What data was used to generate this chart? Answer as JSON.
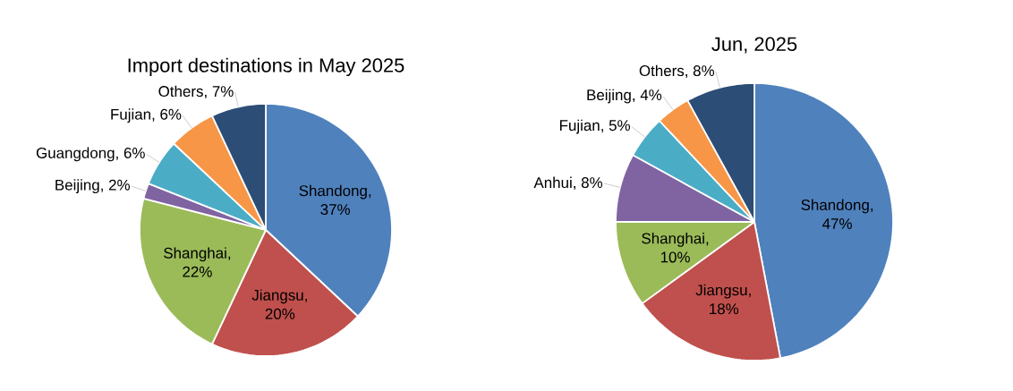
{
  "chart_data": [
    {
      "type": "pie",
      "title": "Import destinations in May 2025",
      "categories": [
        "Shandong",
        "Jiangsu",
        "Shanghai",
        "Beijing",
        "Guangdong",
        "Fujian",
        "Others"
      ],
      "values": [
        37,
        20,
        22,
        2,
        6,
        6,
        7
      ],
      "value_labels": [
        ", 37%",
        ", 20%",
        ", 22%",
        ", 2%",
        ", 6%",
        ", 6%",
        ", 7%"
      ],
      "colors": [
        "#4f81bd",
        "#c0504d",
        "#9bbb59",
        "#8064a2",
        "#4bacc6",
        "#f79646",
        "#2c4d75"
      ]
    },
    {
      "type": "pie",
      "title": "Jun, 2025",
      "categories": [
        "Shandong",
        "Jiangsu",
        "Shanghai",
        "Anhui",
        "Fujian",
        "Beijing",
        "Others"
      ],
      "values": [
        47,
        18,
        10,
        8,
        5,
        4,
        8
      ],
      "value_labels": [
        ", 47%",
        ", 18%",
        ", 10%",
        ", 8%",
        ", 5%",
        ", 4%",
        ", 8%"
      ],
      "colors": [
        "#4f81bd",
        "#c0504d",
        "#9bbb59",
        "#8064a2",
        "#4bacc6",
        "#f79646",
        "#2c4d75"
      ]
    }
  ]
}
